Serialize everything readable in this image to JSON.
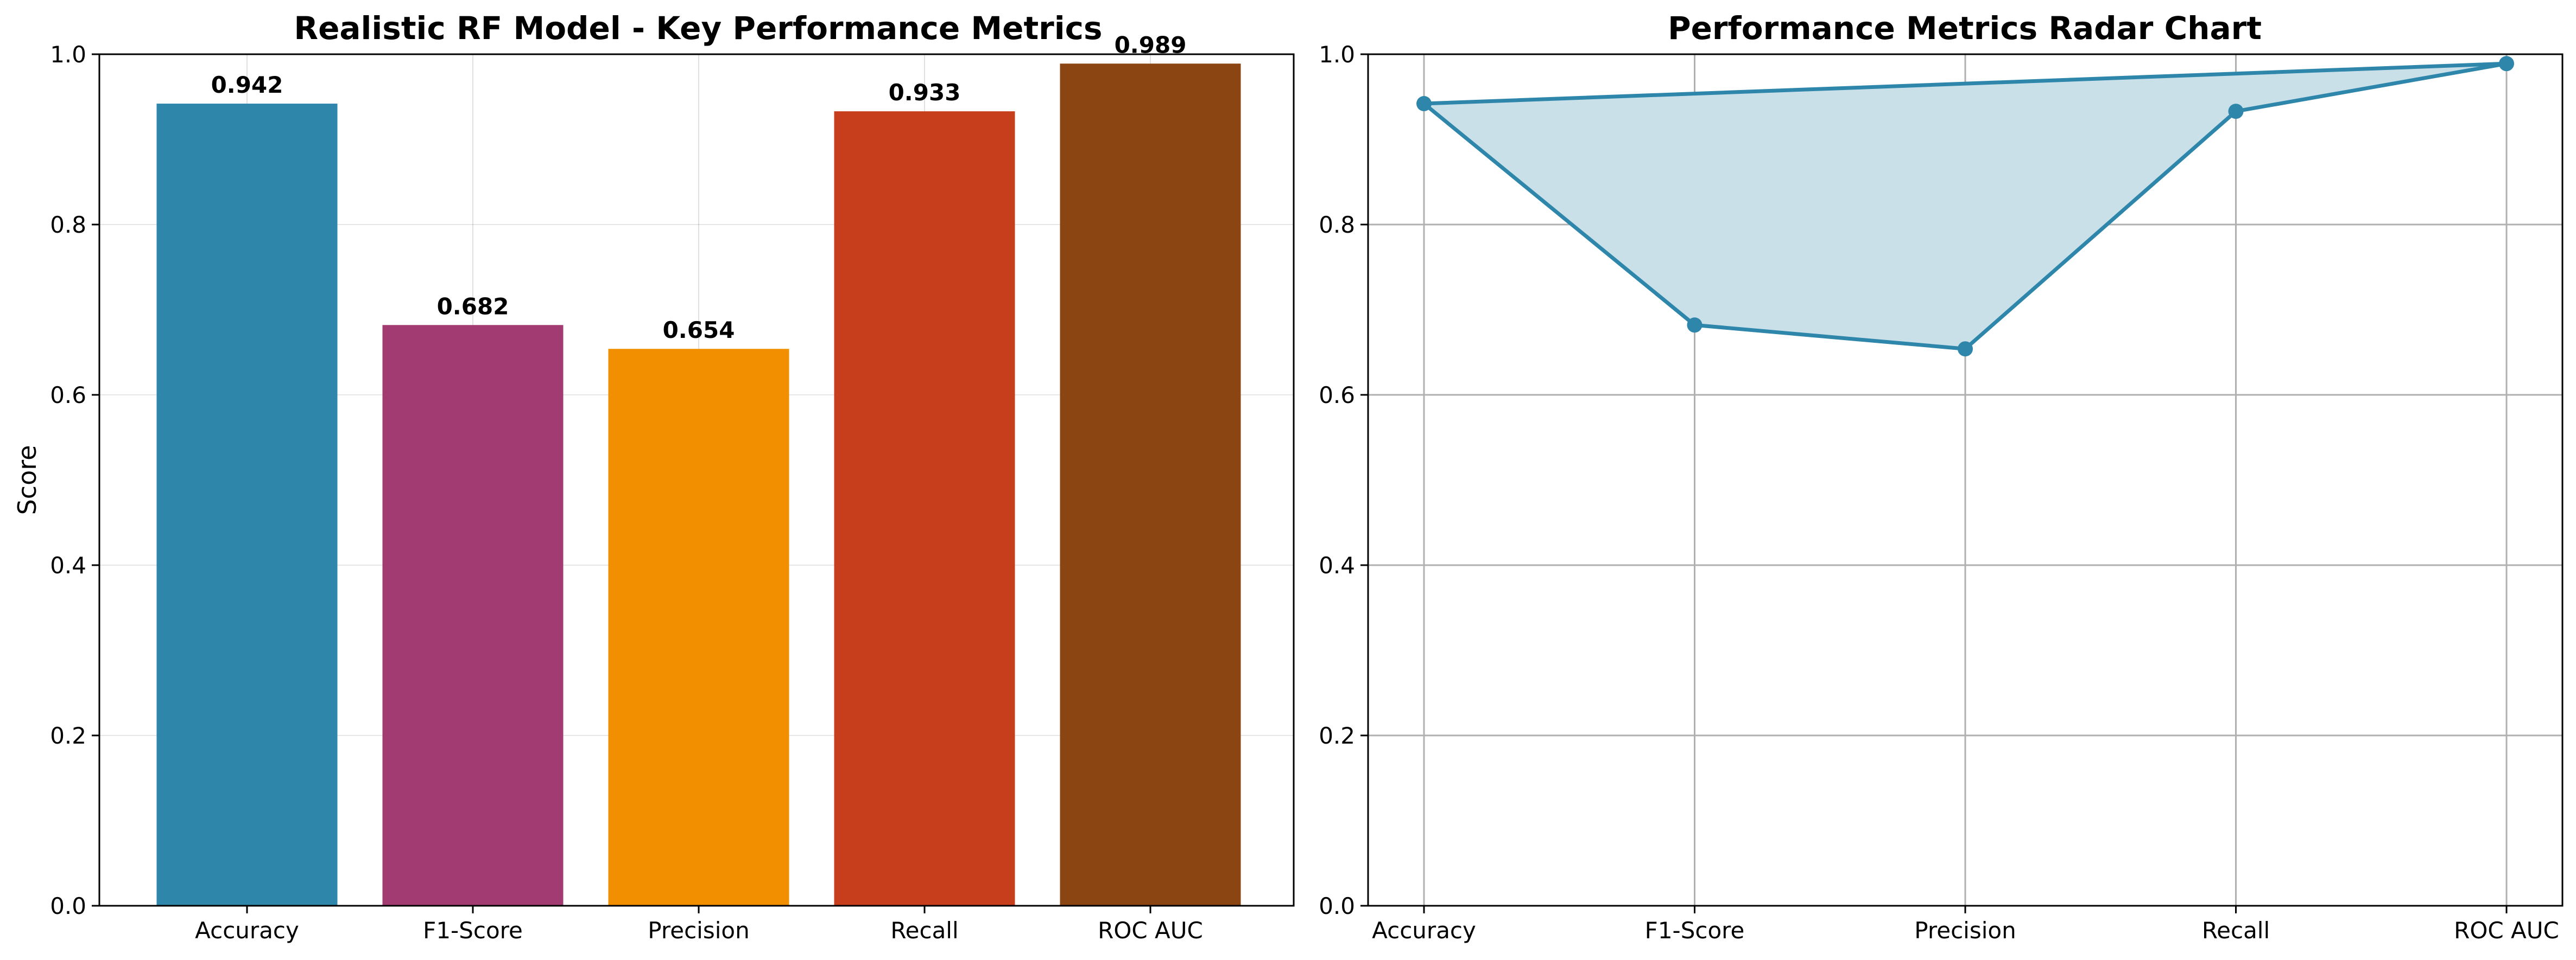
{
  "chart_data": [
    {
      "type": "bar",
      "title": "Realistic RF Model - Key Performance Metrics",
      "xlabel": "",
      "ylabel": "Score",
      "categories": [
        "Accuracy",
        "F1-Score",
        "Precision",
        "Recall",
        "ROC AUC"
      ],
      "values": [
        0.942,
        0.682,
        0.654,
        0.933,
        0.989
      ],
      "value_labels": [
        "0.942",
        "0.682",
        "0.654",
        "0.933",
        "0.989"
      ],
      "colors": [
        "#2e86ab",
        "#a23b72",
        "#f18f01",
        "#c73e1d",
        "#8b4513"
      ],
      "ylim": [
        0,
        1.0
      ],
      "yticks": [
        0.0,
        0.2,
        0.4,
        0.6,
        0.8,
        1.0
      ],
      "ytick_labels": [
        "0.0",
        "0.2",
        "0.4",
        "0.6",
        "0.8",
        "1.0"
      ],
      "grid": true
    },
    {
      "type": "area",
      "title": "Performance Metrics Radar Chart",
      "xlabel": "",
      "ylabel": "",
      "categories": [
        "Accuracy",
        "F1-Score",
        "Precision",
        "Recall",
        "ROC AUC"
      ],
      "values": [
        0.942,
        0.682,
        0.654,
        0.933,
        0.989
      ],
      "closed": true,
      "line_color": "#2e86ab",
      "fill_color": "#c9e0e9",
      "ylim": [
        0,
        1.0
      ],
      "yticks": [
        0.0,
        0.2,
        0.4,
        0.6,
        0.8,
        1.0
      ],
      "ytick_labels": [
        "0.0",
        "0.2",
        "0.4",
        "0.6",
        "0.8",
        "1.0"
      ],
      "grid": true
    }
  ]
}
